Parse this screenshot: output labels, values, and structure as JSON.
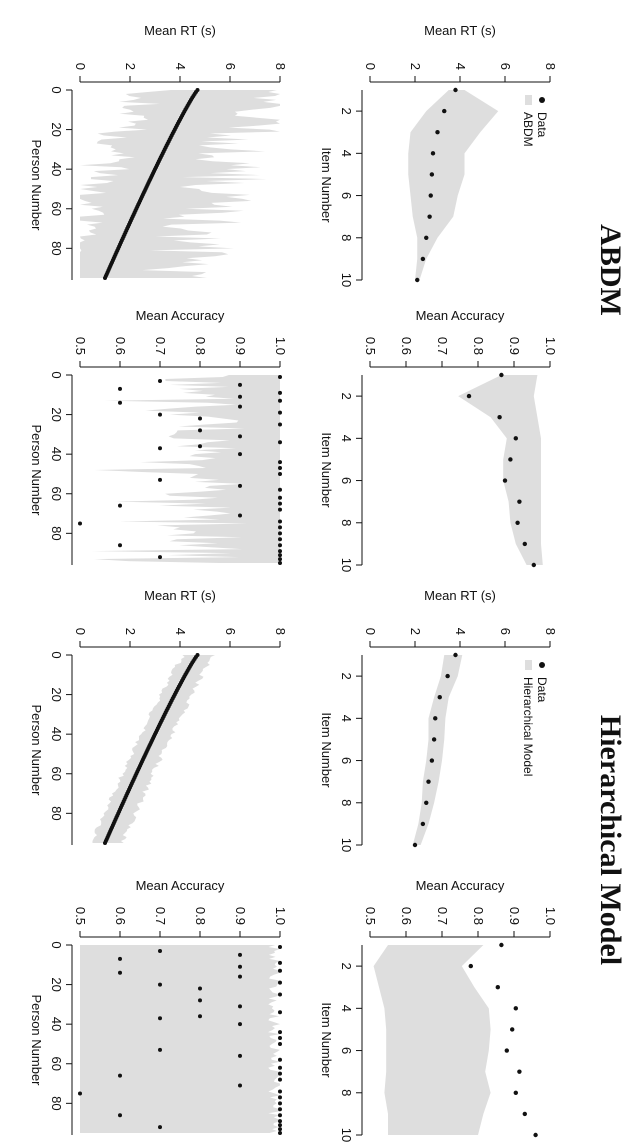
{
  "figure": {
    "titles": [
      "ABDM",
      "Hierarchical Model"
    ],
    "rotation": "90 degrees clockwise (landscape figure rotated onto portrait page)"
  },
  "chart_data": [
    {
      "id": "abdm-item-rt",
      "type": "line",
      "group": "ABDM",
      "xlabel": "Item Number",
      "ylabel": "Mean RT (s)",
      "xlim": [
        1,
        10
      ],
      "ylim": [
        0,
        8
      ],
      "xticks": [
        2,
        4,
        6,
        8,
        10
      ],
      "yticks": [
        0,
        2,
        4,
        6,
        8
      ],
      "legend": {
        "placement": "top-left",
        "entries": [
          "Data",
          "ABDM"
        ]
      },
      "series": [
        {
          "name": "Data",
          "x": [
            1,
            2,
            3,
            4,
            5,
            6,
            7,
            8,
            9,
            10
          ],
          "y": [
            3.8,
            3.3,
            3.0,
            2.8,
            2.75,
            2.7,
            2.65,
            2.5,
            2.35,
            2.1
          ]
        },
        {
          "name": "ABDM",
          "x": [
            1,
            2,
            3,
            4,
            5,
            6,
            7,
            8,
            9,
            10
          ],
          "lower": [
            3.5,
            2.5,
            1.8,
            1.7,
            1.7,
            1.8,
            1.9,
            2.1,
            2.1,
            2.0
          ],
          "upper": [
            4.2,
            5.7,
            4.9,
            4.2,
            4.2,
            3.9,
            3.7,
            3.0,
            2.5,
            2.2
          ]
        }
      ]
    },
    {
      "id": "abdm-item-acc",
      "type": "line",
      "group": "ABDM",
      "xlabel": "Item Number",
      "ylabel": "Mean Accuracy",
      "xlim": [
        1,
        10
      ],
      "ylim": [
        0.5,
        1.0
      ],
      "xticks": [
        2,
        4,
        6,
        8,
        10
      ],
      "yticks": [
        0.5,
        0.6,
        0.7,
        0.8,
        0.9,
        1.0
      ],
      "series": [
        {
          "name": "Data",
          "x": [
            1,
            2,
            3,
            4,
            5,
            6,
            7,
            8,
            9,
            10
          ],
          "y": [
            0.865,
            0.775,
            0.86,
            0.905,
            0.89,
            0.875,
            0.915,
            0.91,
            0.93,
            0.955
          ]
        },
        {
          "name": "ABDM",
          "x": [
            1,
            2,
            3,
            4,
            5,
            6,
            7,
            8,
            9,
            10
          ],
          "lower": [
            0.865,
            0.745,
            0.835,
            0.88,
            0.87,
            0.87,
            0.885,
            0.89,
            0.905,
            0.935
          ],
          "upper": [
            0.965,
            0.955,
            0.965,
            0.975,
            0.975,
            0.975,
            0.975,
            0.975,
            0.975,
            0.98
          ]
        }
      ]
    },
    {
      "id": "hier-item-rt",
      "type": "line",
      "group": "Hierarchical Model",
      "xlabel": "Item Number",
      "ylabel": "Mean RT (s)",
      "xlim": [
        1,
        10
      ],
      "ylim": [
        0,
        8
      ],
      "xticks": [
        2,
        4,
        6,
        8,
        10
      ],
      "yticks": [
        0,
        2,
        4,
        6,
        8
      ],
      "legend": {
        "placement": "top-left",
        "entries": [
          "Data",
          "Hierarchical Model"
        ]
      },
      "series": [
        {
          "name": "Data",
          "x": [
            1,
            2,
            3,
            4,
            5,
            6,
            7,
            8,
            9,
            10
          ],
          "y": [
            3.8,
            3.45,
            3.1,
            2.9,
            2.85,
            2.75,
            2.6,
            2.5,
            2.35,
            2.0
          ]
        },
        {
          "name": "Hierarchical Model",
          "x": [
            1,
            2,
            3,
            4,
            5,
            6,
            7,
            8,
            9,
            10
          ],
          "lower": [
            3.3,
            3.15,
            2.85,
            2.6,
            2.6,
            2.5,
            2.35,
            2.3,
            2.15,
            1.9
          ],
          "upper": [
            4.1,
            3.9,
            3.5,
            3.35,
            3.3,
            3.2,
            3.05,
            2.85,
            2.6,
            2.25
          ]
        }
      ]
    },
    {
      "id": "hier-item-acc",
      "type": "line",
      "group": "Hierarchical Model",
      "xlabel": "Item Number",
      "ylabel": "Mean Accuracy",
      "xlim": [
        1,
        10
      ],
      "ylim": [
        0.5,
        1.0
      ],
      "xticks": [
        2,
        4,
        6,
        8,
        10
      ],
      "yticks": [
        0.5,
        0.6,
        0.7,
        0.8,
        0.9,
        1.0
      ],
      "series": [
        {
          "name": "Data",
          "x": [
            1,
            2,
            3,
            4,
            5,
            6,
            7,
            8,
            9,
            10
          ],
          "y": [
            0.865,
            0.78,
            0.855,
            0.905,
            0.895,
            0.88,
            0.915,
            0.905,
            0.93,
            0.96
          ]
        },
        {
          "name": "Hierarchical Model",
          "x": [
            1,
            2,
            3,
            4,
            5,
            6,
            7,
            8,
            9,
            10
          ],
          "lower": [
            0.55,
            0.51,
            0.525,
            0.54,
            0.545,
            0.545,
            0.545,
            0.54,
            0.55,
            0.55
          ],
          "upper": [
            0.815,
            0.755,
            0.79,
            0.83,
            0.835,
            0.83,
            0.82,
            0.835,
            0.815,
            0.8
          ]
        }
      ]
    },
    {
      "id": "abdm-person-rt",
      "type": "line",
      "group": "ABDM",
      "xlabel": "Person Number",
      "ylabel": "Mean RT (s)",
      "xlim": [
        0,
        96
      ],
      "ylim": [
        0,
        8
      ],
      "xticks": [
        0,
        20,
        40,
        60,
        80
      ],
      "yticks": [
        0,
        2,
        4,
        6,
        8
      ],
      "series": [
        {
          "name": "Data",
          "start": 4.7,
          "end": 1.0,
          "n": 96
        },
        {
          "name": "ABDM",
          "band_lower": [
            0.3,
            3.3
          ],
          "band_upper": [
            8.0,
            1.6
          ],
          "spiky": true
        }
      ]
    },
    {
      "id": "abdm-person-acc",
      "type": "scatter",
      "group": "ABDM",
      "xlabel": "Person Number",
      "ylabel": "Mean Accuracy",
      "xlim": [
        0,
        96
      ],
      "ylim": [
        0.5,
        1.0
      ],
      "xticks": [
        0,
        20,
        40,
        60,
        80
      ],
      "yticks": [
        0.5,
        0.6,
        0.7,
        0.8,
        0.9,
        1.0
      ],
      "series": [
        {
          "name": "Data",
          "points": [
            [
              1,
              1.0
            ],
            [
              5,
              0.9
            ],
            [
              9,
              1.0
            ],
            [
              11,
              0.9
            ],
            [
              13,
              1.0
            ],
            [
              16,
              0.9
            ],
            [
              19,
              1.0
            ],
            [
              22,
              0.8
            ],
            [
              25,
              1.0
            ],
            [
              28,
              0.8
            ],
            [
              31,
              0.9
            ],
            [
              34,
              1.0
            ],
            [
              36,
              0.8
            ],
            [
              40,
              0.9
            ],
            [
              44,
              1.0
            ],
            [
              47,
              1.0
            ],
            [
              50,
              1.0
            ],
            [
              53,
              0.7
            ],
            [
              56,
              0.9
            ],
            [
              58,
              1.0
            ],
            [
              62,
              1.0
            ],
            [
              65,
              1.0
            ],
            [
              68,
              1.0
            ],
            [
              71,
              0.9
            ],
            [
              74,
              1.0
            ],
            [
              77,
              1.0
            ],
            [
              80,
              1.0
            ],
            [
              83,
              1.0
            ],
            [
              86,
              1.0
            ],
            [
              89,
              1.0
            ],
            [
              91,
              1.0
            ],
            [
              93,
              1.0
            ],
            [
              3,
              0.7
            ],
            [
              7,
              0.6
            ],
            [
              14,
              0.6
            ],
            [
              20,
              0.7
            ],
            [
              37,
              0.7
            ],
            [
              66,
              0.6
            ],
            [
              75,
              0.5
            ],
            [
              86,
              0.6
            ],
            [
              92,
              0.7
            ],
            [
              95,
              1.0
            ]
          ]
        },
        {
          "name": "ABDM",
          "band": "0.7 to 1.0 with downward spikes"
        }
      ]
    },
    {
      "id": "hier-person-rt",
      "type": "line",
      "group": "Hierarchical Model",
      "xlabel": "Person Number",
      "ylabel": "Mean RT (s)",
      "xlim": [
        0,
        96
      ],
      "ylim": [
        0,
        8
      ],
      "xticks": [
        0,
        20,
        40,
        60,
        80
      ],
      "yticks": [
        0,
        2,
        4,
        6,
        8
      ],
      "series": [
        {
          "name": "Data",
          "start": 4.7,
          "end": 1.0,
          "n": 96
        },
        {
          "name": "Hierarchical Model",
          "band_lower": [
            4.3,
            0.9
          ],
          "band_upper": [
            5.3,
            1.2
          ]
        }
      ]
    },
    {
      "id": "hier-person-acc",
      "type": "scatter",
      "group": "Hierarchical Model",
      "xlabel": "Person Number",
      "ylabel": "Mean Accuracy",
      "xlim": [
        0,
        96
      ],
      "ylim": [
        0.5,
        1.0
      ],
      "xticks": [
        0,
        20,
        40,
        60,
        80
      ],
      "yticks": [
        0.5,
        0.6,
        0.7,
        0.8,
        0.9,
        1.0
      ],
      "series": [
        {
          "name": "Data",
          "points": [
            [
              1,
              1.0
            ],
            [
              5,
              0.9
            ],
            [
              9,
              1.0
            ],
            [
              11,
              0.9
            ],
            [
              13,
              1.0
            ],
            [
              16,
              0.9
            ],
            [
              19,
              1.0
            ],
            [
              22,
              0.8
            ],
            [
              25,
              1.0
            ],
            [
              28,
              0.8
            ],
            [
              31,
              0.9
            ],
            [
              34,
              1.0
            ],
            [
              36,
              0.8
            ],
            [
              40,
              0.9
            ],
            [
              44,
              1.0
            ],
            [
              47,
              1.0
            ],
            [
              50,
              1.0
            ],
            [
              53,
              0.7
            ],
            [
              56,
              0.9
            ],
            [
              58,
              1.0
            ],
            [
              62,
              1.0
            ],
            [
              65,
              1.0
            ],
            [
              68,
              1.0
            ],
            [
              71,
              0.9
            ],
            [
              74,
              1.0
            ],
            [
              77,
              1.0
            ],
            [
              80,
              1.0
            ],
            [
              83,
              1.0
            ],
            [
              86,
              1.0
            ],
            [
              89,
              1.0
            ],
            [
              91,
              1.0
            ],
            [
              93,
              1.0
            ],
            [
              3,
              0.7
            ],
            [
              7,
              0.6
            ],
            [
              14,
              0.6
            ],
            [
              20,
              0.7
            ],
            [
              37,
              0.7
            ],
            [
              66,
              0.6
            ],
            [
              75,
              0.5
            ],
            [
              86,
              0.6
            ],
            [
              92,
              0.7
            ],
            [
              95,
              1.0
            ]
          ]
        },
        {
          "name": "Hierarchical Model",
          "band": "0.5 to 1.0 with upward spikes"
        }
      ]
    }
  ]
}
